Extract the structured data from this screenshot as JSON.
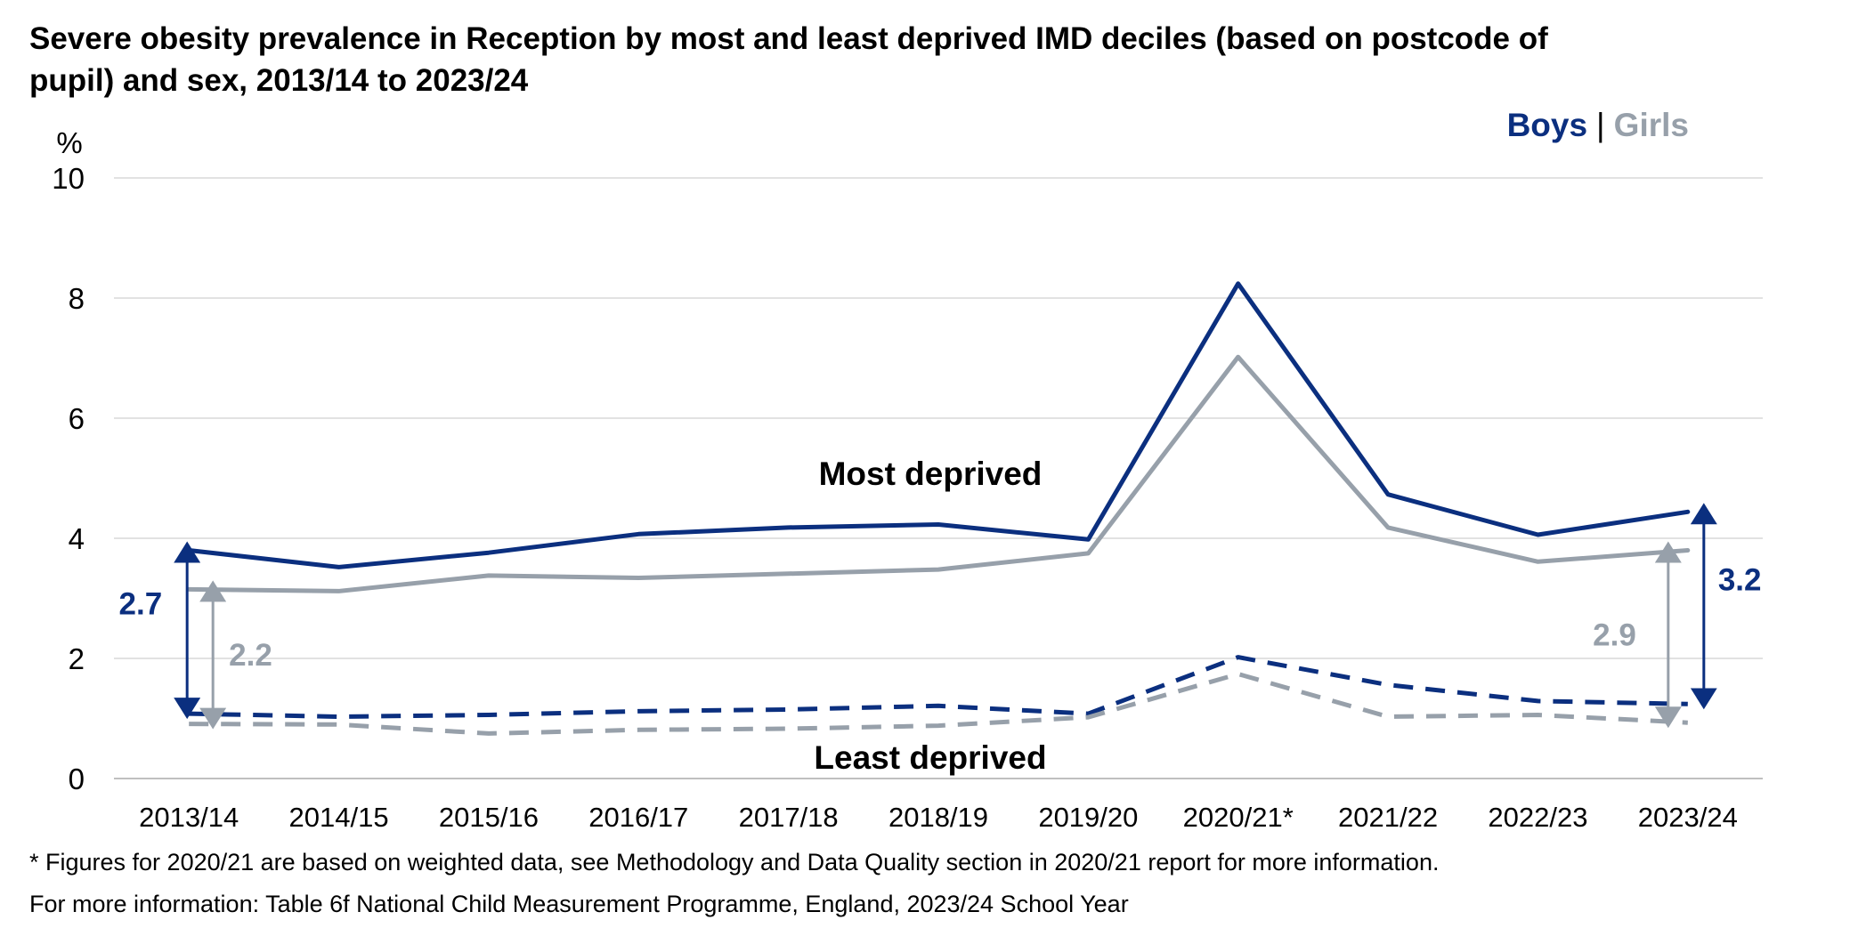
{
  "chart_data": {
    "type": "line",
    "title_line1": "Severe obesity prevalence in Reception by most and least deprived IMD deciles (based on postcode of",
    "title_line2": "pupil) and sex, 2013/14 to 2023/24",
    "ylabel": "%",
    "ylim": [
      0,
      10
    ],
    "yticks": [
      "0",
      "2",
      "4",
      "6",
      "8",
      "10"
    ],
    "categories": [
      "2013/14",
      "2014/15",
      "2015/16",
      "2016/17",
      "2017/18",
      "2018/19",
      "2019/20",
      "2020/21*",
      "2021/22",
      "2022/23",
      "2023/24"
    ],
    "legend": {
      "boys": "Boys",
      "separator": "|",
      "girls": "Girls"
    },
    "colors": {
      "boys": "#0b2f7f",
      "girls": "#97a0aa",
      "grid": "#d9d9d9"
    },
    "series": [
      {
        "group": "Most deprived",
        "sex": "Boys",
        "style": "solid",
        "values": [
          3.8,
          3.52,
          3.76,
          4.07,
          4.18,
          4.23,
          3.98,
          8.24,
          4.73,
          4.06,
          4.44
        ]
      },
      {
        "group": "Most deprived",
        "sex": "Girls",
        "style": "solid",
        "values": [
          3.15,
          3.12,
          3.38,
          3.34,
          3.41,
          3.48,
          3.75,
          7.02,
          4.18,
          3.61,
          3.8
        ]
      },
      {
        "group": "Least deprived",
        "sex": "Boys",
        "style": "dashed",
        "values": [
          1.08,
          1.03,
          1.06,
          1.12,
          1.15,
          1.21,
          1.08,
          2.02,
          1.56,
          1.29,
          1.24
        ]
      },
      {
        "group": "Least deprived",
        "sex": "Girls",
        "style": "dashed",
        "values": [
          0.91,
          0.9,
          0.75,
          0.81,
          0.83,
          0.88,
          1.02,
          1.74,
          1.03,
          1.06,
          0.93
        ]
      }
    ],
    "annotations": {
      "most_deprived": "Most deprived",
      "least_deprived": "Least deprived"
    },
    "gaps": [
      {
        "category": "2013/14",
        "sex": "Boys",
        "label": "2.7"
      },
      {
        "category": "2013/14",
        "sex": "Girls",
        "label": "2.2"
      },
      {
        "category": "2023/24",
        "sex": "Girls",
        "label": "2.9"
      },
      {
        "category": "2023/24",
        "sex": "Boys",
        "label": "3.2"
      }
    ]
  },
  "footnotes": {
    "line1": "* Figures for 2020/21 are based on weighted data, see Methodology and Data Quality section in 2020/21 report for more information.",
    "line2": "For more information: Table 6f National Child Measurement Programme, England, 2023/24 School Year"
  }
}
